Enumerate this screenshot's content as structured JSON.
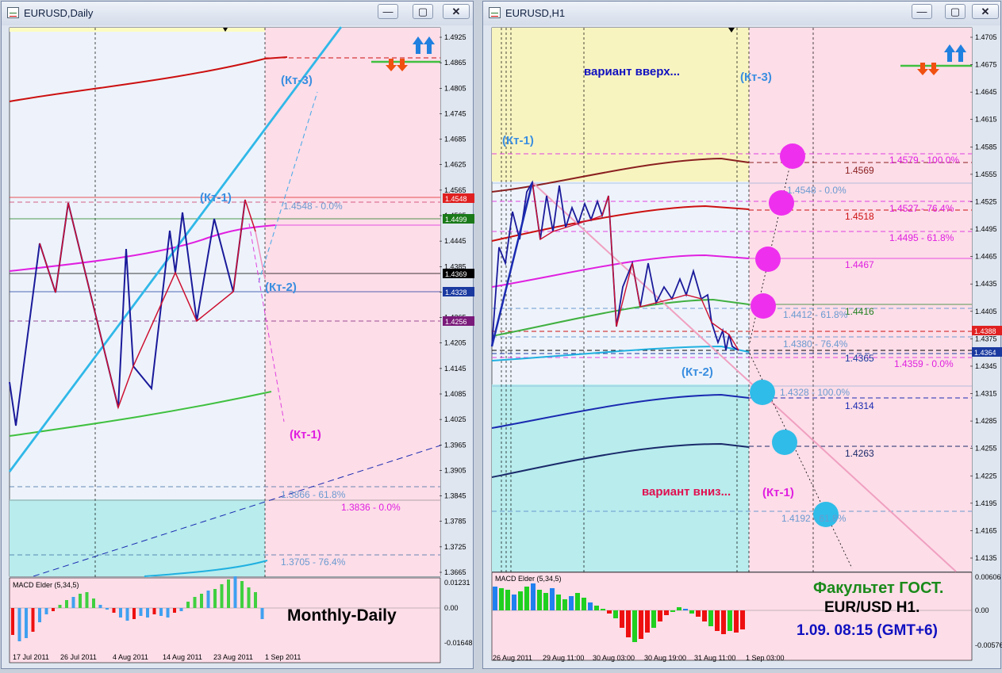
{
  "left_window": {
    "title": "EURUSD,Daily",
    "buttons": {
      "minimize": "—",
      "maximize": "▢",
      "close": "✕"
    },
    "price_axis": [
      "1.4925",
      "1.4865",
      "1.4805",
      "1.4745",
      "1.4685",
      "1.4625",
      "1.4565",
      "1.4505",
      "1.4445",
      "1.4385",
      "1.4325",
      "1.4265",
      "1.4205",
      "1.4145",
      "1.4085",
      "1.4025",
      "1.3965",
      "1.3905",
      "1.3845",
      "1.3785",
      "1.3725",
      "1.3665"
    ],
    "price_tags": [
      {
        "label": "1.4548",
        "color": "#e02020"
      },
      {
        "label": "1.4499",
        "color": "#1a7a1a"
      },
      {
        "label": "1.4369",
        "color": "#000000"
      },
      {
        "label": "1.4328",
        "color": "#1a3aa0"
      },
      {
        "label": "1.4256",
        "color": "#7a1a7a"
      }
    ],
    "fib_labels": {
      "top": "1.4548 - 0.0%",
      "f618": "1.3866 - 61.8%",
      "zero": "1.3836 - 0.0%",
      "f764": "1.3705 - 76.4%"
    },
    "kt_labels": {
      "kt3": "(Кт-3)",
      "kt1_top": "(Кт-1)",
      "kt2": "(Кт-2)",
      "kt1_low": "(Кт-1)"
    },
    "macd_title": "MACD Elder (5,34,5)",
    "macd_axis": [
      "0.01231",
      "0.00",
      "-0.01648"
    ],
    "date_axis": [
      "17 Jul 2011",
      "26 Jul 2011",
      "4 Aug 2011",
      "14 Aug 2011",
      "23 Aug 2011",
      "1 Sep 2011"
    ],
    "caption": "Monthly-Daily"
  },
  "right_window": {
    "title": "EURUSD,H1",
    "buttons": {
      "minimize": "—",
      "maximize": "▢",
      "close": "✕"
    },
    "price_axis": [
      "1.4705",
      "1.4675",
      "1.4645",
      "1.4615",
      "1.4585",
      "1.4555",
      "1.4525",
      "1.4495",
      "1.4465",
      "1.4435",
      "1.4405",
      "1.4375",
      "1.4345",
      "1.4315",
      "1.4285",
      "1.4255",
      "1.4225",
      "1.4195",
      "1.4165",
      "1.4135"
    ],
    "price_tags": [
      {
        "label": "1.4388",
        "color": "#e02020"
      },
      {
        "label": "1.4364",
        "color": "#1a3aa0"
      }
    ],
    "level_labels": [
      "1.4569",
      "1.4518",
      "1.4467",
      "1.4416",
      "1.4365",
      "1.4314",
      "1.4263"
    ],
    "fib_labels": [
      "1.4579 - 100.0%",
      "1.4548 - 0.0%",
      "1.4527 - 76.4%",
      "1.4495 - 61.8%",
      "1.4412 - 61.8%",
      "1.4380 - 76.4%",
      "1.4359 - 0.0%",
      "1.4328 - 100.0%",
      "1.4192 - 61.8%"
    ],
    "variant_up": "вариант вверх...",
    "variant_down": "вариант вниз...",
    "kt_labels": {
      "kt1_top": "(Кт-1)",
      "kt3": "(Кт-3)",
      "kt2": "(Кт-2)",
      "kt1_low": "(Кт-1)"
    },
    "macd_title": "MACD Elder (5,34,5)",
    "macd_axis": [
      "0.00606",
      "0.00",
      "-0.00576"
    ],
    "date_axis": [
      "26 Aug 2011",
      "29 Aug 11:00",
      "30 Aug 03:00",
      "30 Aug 19:00",
      "31 Aug 11:00",
      "1 Sep 03:00"
    ],
    "caption_school": "Факультет ГОСТ.",
    "caption_pair": "EUR/USD H1.",
    "caption_time": "1.09. 08:15 (GMT+6)"
  }
}
